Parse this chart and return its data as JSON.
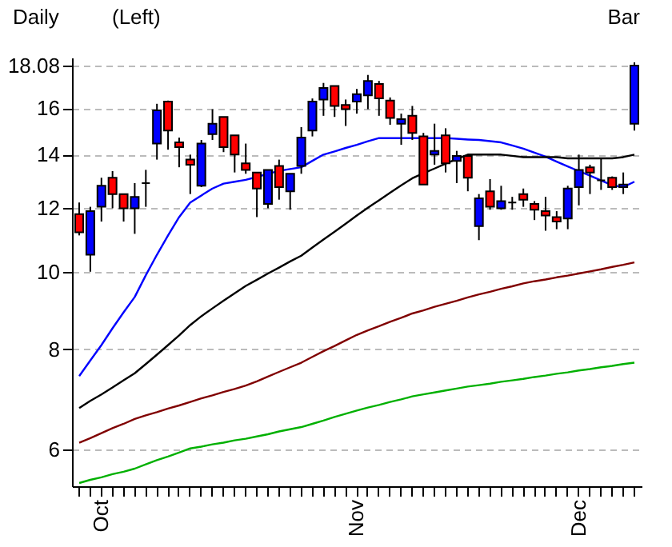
{
  "chart_data": {
    "type": "candlestick",
    "annotations": [
      "Daily",
      "(Left)",
      "Bar"
    ],
    "categories": [
      null,
      null,
      "Oct",
      null,
      null,
      null,
      null,
      null,
      null,
      null,
      null,
      null,
      null,
      null,
      null,
      null,
      null,
      null,
      null,
      null,
      null,
      null,
      null,
      null,
      null,
      "Nov",
      null,
      null,
      null,
      null,
      null,
      null,
      null,
      null,
      null,
      null,
      null,
      null,
      null,
      null,
      null,
      null,
      null,
      null,
      null,
      "Dec",
      null,
      null,
      null,
      null,
      null
    ],
    "ohlc": [
      [
        11.8,
        12.2,
        11.1,
        11.2
      ],
      [
        10.5,
        12.05,
        10.0,
        11.9
      ],
      [
        12.05,
        13.1,
        11.55,
        12.8
      ],
      [
        13.1,
        13.35,
        12.0,
        12.5
      ],
      [
        12.5,
        12.5,
        11.55,
        12.0
      ],
      [
        12.0,
        12.9,
        11.15,
        12.4
      ],
      [
        12.9,
        13.4,
        12.05,
        12.9
      ],
      [
        14.45,
        16.2,
        13.8,
        15.9
      ],
      [
        16.3,
        16.35,
        14.2,
        15.0
      ],
      [
        14.5,
        14.7,
        13.5,
        14.3
      ],
      [
        13.8,
        14.0,
        12.5,
        13.6
      ],
      [
        12.8,
        14.6,
        12.75,
        14.45
      ],
      [
        14.85,
        15.95,
        14.6,
        15.3
      ],
      [
        15.6,
        15.6,
        14.1,
        14.3
      ],
      [
        14.8,
        14.8,
        13.3,
        14.0
      ],
      [
        13.65,
        14.45,
        13.25,
        13.4
      ],
      [
        13.3,
        13.3,
        11.7,
        12.7
      ],
      [
        12.15,
        13.4,
        12.0,
        13.4
      ],
      [
        13.55,
        13.8,
        12.3,
        12.75
      ],
      [
        12.6,
        13.25,
        11.95,
        13.25
      ],
      [
        13.55,
        15.15,
        13.25,
        14.7
      ],
      [
        15.0,
        16.45,
        14.75,
        16.3
      ],
      [
        16.4,
        17.2,
        15.65,
        16.95
      ],
      [
        17.05,
        17.05,
        15.6,
        16.1
      ],
      [
        16.15,
        16.4,
        15.2,
        15.95
      ],
      [
        16.3,
        16.9,
        15.75,
        16.65
      ],
      [
        16.6,
        17.6,
        15.95,
        17.3
      ],
      [
        17.15,
        17.3,
        15.65,
        16.45
      ],
      [
        16.35,
        16.5,
        15.25,
        15.55
      ],
      [
        15.3,
        15.75,
        14.4,
        15.5
      ],
      [
        15.65,
        16.1,
        14.6,
        14.9
      ],
      [
        14.75,
        14.9,
        12.85,
        12.85
      ],
      [
        14.0,
        15.3,
        13.6,
        14.15
      ],
      [
        14.8,
        15.1,
        13.3,
        13.65
      ],
      [
        13.75,
        14.15,
        12.9,
        13.95
      ],
      [
        13.95,
        14.0,
        12.6,
        13.1
      ],
      [
        11.4,
        12.5,
        10.95,
        12.35
      ],
      [
        12.6,
        13.05,
        11.95,
        12.05
      ],
      [
        12.0,
        12.8,
        11.95,
        12.25
      ],
      [
        12.2,
        12.4,
        11.95,
        12.2
      ],
      [
        12.5,
        12.7,
        12.05,
        12.3
      ],
      [
        12.15,
        12.25,
        11.6,
        11.95
      ],
      [
        11.9,
        12.4,
        11.25,
        11.75
      ],
      [
        11.7,
        11.9,
        11.3,
        11.55
      ],
      [
        11.65,
        12.8,
        11.3,
        12.7
      ],
      [
        12.75,
        14.0,
        12.1,
        13.4
      ],
      [
        13.5,
        13.6,
        12.5,
        13.3
      ],
      [
        13.0,
        13.85,
        12.65,
        13.0
      ],
      [
        13.1,
        13.15,
        12.65,
        12.75
      ],
      [
        12.75,
        13.3,
        12.5,
        12.85
      ],
      [
        15.3,
        18.25,
        15.0,
        18.08
      ]
    ],
    "colors": [
      "#ff0000",
      "#0000ff",
      "#0000ff",
      "#ff0000",
      "#ff0000",
      "#0000ff",
      "#000000",
      "#0000ff",
      "#ff0000",
      "#ff0000",
      "#ff0000",
      "#0000ff",
      "#0000ff",
      "#ff0000",
      "#ff0000",
      "#ff0000",
      "#ff0000",
      "#0000ff",
      "#ff0000",
      "#0000ff",
      "#0000ff",
      "#0000ff",
      "#0000ff",
      "#ff0000",
      "#ff0000",
      "#0000ff",
      "#0000ff",
      "#ff0000",
      "#ff0000",
      "#0000ff",
      "#ff0000",
      "#ff0000",
      "#0000ff",
      "#ff0000",
      "#0000ff",
      "#ff0000",
      "#0000ff",
      "#ff0000",
      "#0000ff",
      "#000000",
      "#ff0000",
      "#ff0000",
      "#ff0000",
      "#ff0000",
      "#0000ff",
      "#0000ff",
      "#ff0000",
      "#000000",
      "#ff0000",
      "#0000ff",
      "#0000ff"
    ],
    "series": [
      {
        "type": "line",
        "color": "#0000ff",
        "values": [
          7.41,
          7.75,
          8.1,
          8.5,
          8.9,
          9.3,
          9.9,
          10.5,
          11.1,
          11.7,
          12.2,
          12.45,
          12.7,
          12.88,
          12.95,
          13.02,
          13.13,
          13.25,
          13.36,
          13.43,
          13.5,
          13.75,
          14.0,
          14.13,
          14.27,
          14.4,
          14.55,
          14.68,
          14.68,
          14.68,
          14.68,
          14.68,
          14.68,
          14.68,
          14.65,
          14.62,
          14.6,
          14.55,
          14.5,
          14.37,
          14.24,
          14.08,
          13.92,
          13.72,
          13.53,
          13.35,
          13.18,
          13.0,
          12.82,
          12.75,
          12.95
        ]
      },
      {
        "type": "line",
        "color": "#000000",
        "values": [
          6.76,
          6.9,
          7.03,
          7.17,
          7.32,
          7.47,
          7.67,
          7.88,
          8.1,
          8.33,
          8.58,
          8.8,
          9.0,
          9.2,
          9.4,
          9.6,
          9.77,
          9.95,
          10.12,
          10.3,
          10.47,
          10.72,
          10.97,
          11.22,
          11.48,
          11.75,
          12.02,
          12.28,
          12.55,
          12.82,
          13.08,
          13.27,
          13.45,
          13.64,
          13.82,
          14.0,
          14.0,
          14.0,
          14.0,
          13.95,
          13.9,
          13.9,
          13.9,
          13.9,
          13.85,
          13.85,
          13.85,
          13.85,
          13.85,
          13.9,
          14.0
        ]
      },
      {
        "type": "line",
        "color": "#800000",
        "values": [
          6.12,
          6.2,
          6.29,
          6.38,
          6.46,
          6.55,
          6.62,
          6.68,
          6.75,
          6.81,
          6.88,
          6.95,
          7.01,
          7.08,
          7.14,
          7.21,
          7.3,
          7.4,
          7.5,
          7.6,
          7.7,
          7.83,
          7.96,
          8.08,
          8.21,
          8.34,
          8.45,
          8.55,
          8.66,
          8.76,
          8.87,
          8.95,
          9.04,
          9.12,
          9.2,
          9.29,
          9.37,
          9.44,
          9.52,
          9.59,
          9.67,
          9.73,
          9.78,
          9.84,
          9.89,
          9.95,
          10.01,
          10.07,
          10.14,
          10.2,
          10.27
        ]
      },
      {
        "type": "line",
        "color": "#00b000",
        "values": [
          5.45,
          5.5,
          5.54,
          5.59,
          5.63,
          5.68,
          5.75,
          5.82,
          5.88,
          5.95,
          6.02,
          6.05,
          6.09,
          6.12,
          6.16,
          6.19,
          6.23,
          6.27,
          6.32,
          6.36,
          6.4,
          6.46,
          6.52,
          6.59,
          6.65,
          6.71,
          6.77,
          6.82,
          6.88,
          6.93,
          6.99,
          7.03,
          7.07,
          7.11,
          7.15,
          7.19,
          7.22,
          7.25,
          7.29,
          7.32,
          7.35,
          7.39,
          7.42,
          7.46,
          7.49,
          7.53,
          7.56,
          7.6,
          7.63,
          7.67,
          7.7
        ]
      }
    ],
    "ylim": [
      5.4,
      18.5
    ],
    "yticks": [
      6,
      8,
      10,
      12,
      14,
      16,
      18.08
    ],
    "log": true,
    "grid": "y",
    "marker": "none",
    "line_style": "solid"
  }
}
